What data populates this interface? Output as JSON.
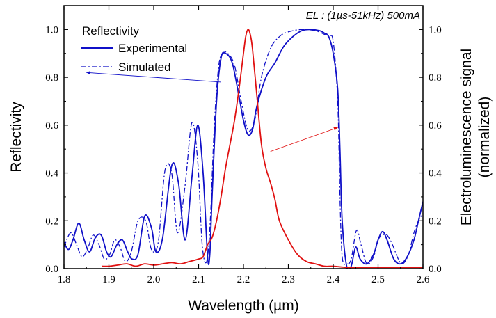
{
  "chart_data": {
    "type": "line",
    "annotation": "EL : (1µs-51kHz) 500mA",
    "xlabel": "Wavelength (µm)",
    "ylabel_left": "Reflectivity",
    "ylabel_right_line1": "Electroluminescence signal",
    "ylabel_right_line2": "(normalized)",
    "xlim": [
      1.8,
      2.6
    ],
    "ylim_left": [
      0.0,
      1.1
    ],
    "ylim_right": [
      0.0,
      1.1
    ],
    "x_ticks": [
      "1.8",
      "1.9",
      "2.0",
      "2.1",
      "2.2",
      "2.3",
      "2.4",
      "2.5",
      "2.6"
    ],
    "y_ticks": [
      "0.0",
      "0.2",
      "0.4",
      "0.6",
      "0.8",
      "1.0"
    ],
    "grid": false,
    "legend_title": "Reflectivity",
    "legend_position": "top-left",
    "colors": {
      "reflectivity": "#1010c8",
      "electroluminescence": "#e01010"
    },
    "series": [
      {
        "name": "Experimental",
        "axis": "left",
        "style": "solid",
        "x": [
          1.8,
          1.81,
          1.82,
          1.833,
          1.845,
          1.857,
          1.87,
          1.883,
          1.895,
          1.905,
          1.918,
          1.93,
          1.942,
          1.952,
          1.965,
          1.98,
          1.995,
          2.005,
          2.02,
          2.04,
          2.055,
          2.07,
          2.085,
          2.098,
          2.11,
          2.12,
          2.125,
          2.13,
          2.14,
          2.15,
          2.16,
          2.175,
          2.19,
          2.2,
          2.21,
          2.22,
          2.23,
          2.25,
          2.27,
          2.29,
          2.31,
          2.33,
          2.35,
          2.37,
          2.38,
          2.39,
          2.4,
          2.41,
          2.415,
          2.42,
          2.43,
          2.44,
          2.45,
          2.46,
          2.475,
          2.49,
          2.5,
          2.51,
          2.52,
          2.535,
          2.55,
          2.565,
          2.58,
          2.59,
          2.6
        ],
        "y": [
          0.11,
          0.08,
          0.12,
          0.19,
          0.12,
          0.07,
          0.13,
          0.14,
          0.07,
          0.05,
          0.1,
          0.12,
          0.07,
          0.04,
          0.06,
          0.22,
          0.17,
          0.07,
          0.13,
          0.43,
          0.36,
          0.12,
          0.38,
          0.6,
          0.4,
          0.05,
          0.06,
          0.3,
          0.7,
          0.88,
          0.9,
          0.86,
          0.72,
          0.62,
          0.56,
          0.58,
          0.68,
          0.8,
          0.86,
          0.93,
          0.97,
          0.995,
          1.0,
          0.995,
          0.985,
          0.97,
          0.9,
          0.75,
          0.5,
          0.2,
          0.01,
          0.01,
          0.09,
          0.04,
          0.02,
          0.06,
          0.12,
          0.155,
          0.12,
          0.04,
          0.02,
          0.05,
          0.12,
          0.2,
          0.28
        ]
      },
      {
        "name": "Simulated",
        "axis": "left",
        "style": "dashdot",
        "x": [
          1.8,
          1.815,
          1.828,
          1.84,
          1.852,
          1.865,
          1.878,
          1.89,
          1.902,
          1.913,
          1.925,
          1.937,
          1.95,
          1.965,
          1.982,
          1.995,
          2.01,
          2.025,
          2.04,
          2.053,
          2.07,
          2.085,
          2.098,
          2.108,
          2.118,
          2.126,
          2.135,
          2.145,
          2.155,
          2.165,
          2.18,
          2.195,
          2.21,
          2.225,
          2.24,
          2.26,
          2.28,
          2.3,
          2.33,
          2.36,
          2.38,
          2.39,
          2.4,
          2.41,
          2.415,
          2.42,
          2.43,
          2.44,
          2.452,
          2.462,
          2.475,
          2.49,
          2.5,
          2.51,
          2.52,
          2.532,
          2.545,
          2.555,
          2.568,
          2.58,
          2.59,
          2.6
        ],
        "y": [
          0.09,
          0.15,
          0.1,
          0.05,
          0.08,
          0.14,
          0.1,
          0.04,
          0.06,
          0.12,
          0.09,
          0.03,
          0.07,
          0.2,
          0.2,
          0.08,
          0.11,
          0.41,
          0.4,
          0.15,
          0.35,
          0.61,
          0.45,
          0.1,
          0.03,
          0.2,
          0.6,
          0.85,
          0.9,
          0.9,
          0.85,
          0.7,
          0.58,
          0.62,
          0.8,
          0.92,
          0.97,
          0.99,
          1.0,
          0.995,
          0.98,
          0.97,
          0.95,
          0.7,
          0.3,
          0.05,
          0.02,
          0.04,
          0.16,
          0.1,
          0.02,
          0.05,
          0.12,
          0.14,
          0.14,
          0.1,
          0.04,
          0.02,
          0.06,
          0.15,
          0.2,
          0.23
        ]
      },
      {
        "name": "",
        "axis": "right",
        "style": "solid",
        "x": [
          1.885,
          1.9,
          1.92,
          1.94,
          1.96,
          1.98,
          2.0,
          2.02,
          2.04,
          2.06,
          2.08,
          2.1,
          2.11,
          2.12,
          2.13,
          2.14,
          2.15,
          2.16,
          2.17,
          2.18,
          2.19,
          2.2,
          2.205,
          2.21,
          2.215,
          2.22,
          2.23,
          2.24,
          2.25,
          2.26,
          2.27,
          2.28,
          2.3,
          2.32,
          2.34,
          2.36,
          2.38,
          2.4,
          2.43,
          2.46,
          2.5,
          2.55,
          2.6
        ],
        "y": [
          0.01,
          0.01,
          0.015,
          0.02,
          0.01,
          0.02,
          0.015,
          0.02,
          0.025,
          0.02,
          0.03,
          0.04,
          0.05,
          0.1,
          0.13,
          0.2,
          0.3,
          0.42,
          0.52,
          0.62,
          0.75,
          0.9,
          0.97,
          1.0,
          0.98,
          0.92,
          0.72,
          0.52,
          0.42,
          0.36,
          0.29,
          0.2,
          0.12,
          0.06,
          0.03,
          0.02,
          0.01,
          0.01,
          0.005,
          0.005,
          0.005,
          0.005,
          0.005
        ]
      }
    ],
    "arrows": [
      {
        "from": [
          2.15,
          0.78
        ],
        "to": [
          1.85,
          0.82
        ],
        "axis": "left",
        "color": "#1010c8"
      },
      {
        "from": [
          2.26,
          0.49
        ],
        "to": [
          2.41,
          0.59
        ],
        "axis": "left",
        "color": "#e01010"
      }
    ]
  }
}
